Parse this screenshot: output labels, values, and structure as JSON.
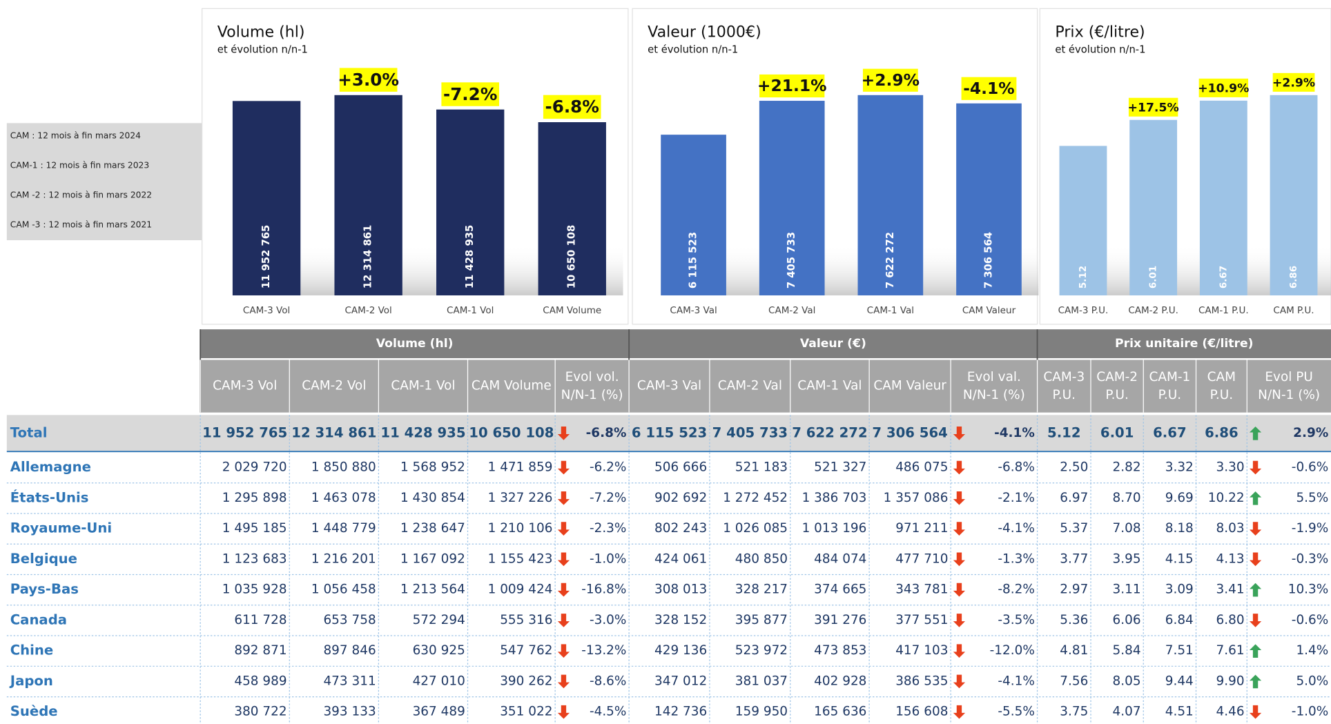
{
  "chart_data": [
    {
      "type": "bar",
      "title": "Volume (hl)",
      "subtitle": "et évolution n/n-1",
      "color": "#1f2d5f",
      "categories": [
        "CAM-3 Vol",
        "CAM-2 Vol",
        "CAM-1 Vol",
        "CAM Volume"
      ],
      "values": [
        11952765,
        12314861,
        11428935,
        10650108
      ],
      "value_labels": [
        "11 952 765",
        "12 314 861",
        "11 428 935",
        "10 650 108"
      ],
      "evolution_labels": [
        null,
        "+3.0%",
        "-7.2%",
        "-6.8%"
      ]
    },
    {
      "type": "bar",
      "title": "Valeur (1000€)",
      "subtitle": "et évolution n/n-1",
      "color": "#4472c4",
      "categories": [
        "CAM-3 Val",
        "CAM-2 Val",
        "CAM-1 Val",
        "CAM Valeur"
      ],
      "values": [
        6115523,
        7405733,
        7622272,
        7306564
      ],
      "value_labels": [
        "6 115 523",
        "7 405 733",
        "7 622 272",
        "7 306 564"
      ],
      "evolution_labels": [
        null,
        "+21.1%",
        "+2.9%",
        "-4.1%"
      ]
    },
    {
      "type": "bar",
      "title": "Prix (€/litre)",
      "subtitle": "et évolution n/n-1",
      "color": "#9dc3e6",
      "categories": [
        "CAM-3 P.U.",
        "CAM-2 P.U.",
        "CAM-1 P.U.",
        "CAM P.U."
      ],
      "values": [
        5.12,
        6.01,
        6.67,
        6.86
      ],
      "evolution_labels": [
        null,
        "+17.5%",
        "+10.9%",
        "+2.9%"
      ]
    }
  ],
  "notes": [
    "CAM : 12 mois à fin mars 2024",
    "CAM-1 : 12 mois à fin mars 2023",
    "CAM -2 : 12 mois à fin mars 2022",
    "CAM -3 : 12 mois à fin mars 2021"
  ],
  "table": {
    "groups": [
      "Volume (hl)",
      "Valeur (€)",
      "Prix unitaire (€/litre)"
    ],
    "columns": [
      "CAM-3 Vol",
      "CAM-2 Vol",
      "CAM-1 Vol",
      "CAM Volume",
      "Evol vol. N/N-1 (%)",
      "CAM-3 Val",
      "CAM-2 Val",
      "CAM-1 Val",
      "CAM Valeur",
      "Evol val. N/N-1 (%)",
      "CAM-3 P.U.",
      "CAM-2 P.U.",
      "CAM-1 P.U.",
      "CAM P.U.",
      "Evol PU N/N-1 (%)"
    ],
    "rows": [
      [
        "Total",
        "11 952 765",
        "12 314 861",
        "11 428 935",
        "10 650 108",
        "-6.8%",
        "6 115 523",
        "7 405 733",
        "7 622 272",
        "7 306 564",
        "-4.1%",
        "5.12",
        "6.01",
        "6.67",
        "6.86",
        "2.9%"
      ],
      [
        "Allemagne",
        "2 029 720",
        "1 850 880",
        "1 568 952",
        "1 471 859",
        "-6.2%",
        "506 666",
        "521 183",
        "521 327",
        "486 075",
        "-6.8%",
        "2.50",
        "2.82",
        "3.32",
        "3.30",
        "-0.6%"
      ],
      [
        "États-Unis",
        "1 295 898",
        "1 463 078",
        "1 430 854",
        "1 327 226",
        "-7.2%",
        "902 692",
        "1 272 452",
        "1 386 703",
        "1 357 086",
        "-2.1%",
        "6.97",
        "8.70",
        "9.69",
        "10.22",
        "5.5%"
      ],
      [
        "Royaume-Uni",
        "1 495 185",
        "1 448 779",
        "1 238 647",
        "1 210 106",
        "-2.3%",
        "802 243",
        "1 026 085",
        "1 013 196",
        "971 211",
        "-4.1%",
        "5.37",
        "7.08",
        "8.18",
        "8.03",
        "-1.9%"
      ],
      [
        "Belgique",
        "1 123 683",
        "1 216 201",
        "1 167 092",
        "1 155 423",
        "-1.0%",
        "424 061",
        "480 850",
        "484 074",
        "477 710",
        "-1.3%",
        "3.77",
        "3.95",
        "4.15",
        "4.13",
        "-0.3%"
      ],
      [
        "Pays-Bas",
        "1 035 928",
        "1 056 458",
        "1 213 564",
        "1 009 424",
        "-16.8%",
        "308 013",
        "328 217",
        "374 665",
        "343 781",
        "-8.2%",
        "2.97",
        "3.11",
        "3.09",
        "3.41",
        "10.3%"
      ],
      [
        "Canada",
        "611 728",
        "653 758",
        "572 294",
        "555 316",
        "-3.0%",
        "328 152",
        "395 877",
        "391 276",
        "377 551",
        "-3.5%",
        "5.36",
        "6.06",
        "6.84",
        "6.80",
        "-0.6%"
      ],
      [
        "Chine",
        "892 871",
        "897 846",
        "630 925",
        "547 762",
        "-13.2%",
        "429 136",
        "523 972",
        "473 853",
        "417 103",
        "-12.0%",
        "4.81",
        "5.84",
        "7.51",
        "7.61",
        "1.4%"
      ],
      [
        "Japon",
        "458 989",
        "473 311",
        "427 010",
        "390 262",
        "-8.6%",
        "347 012",
        "381 037",
        "402 928",
        "386 535",
        "-4.1%",
        "7.56",
        "8.05",
        "9.44",
        "9.90",
        "5.0%"
      ],
      [
        "Suède",
        "380 722",
        "393 133",
        "367 489",
        "351 022",
        "-4.5%",
        "142 736",
        "159 950",
        "165 636",
        "156 608",
        "-5.5%",
        "3.75",
        "4.07",
        "4.51",
        "4.46",
        "-1.0%"
      ]
    ]
  }
}
